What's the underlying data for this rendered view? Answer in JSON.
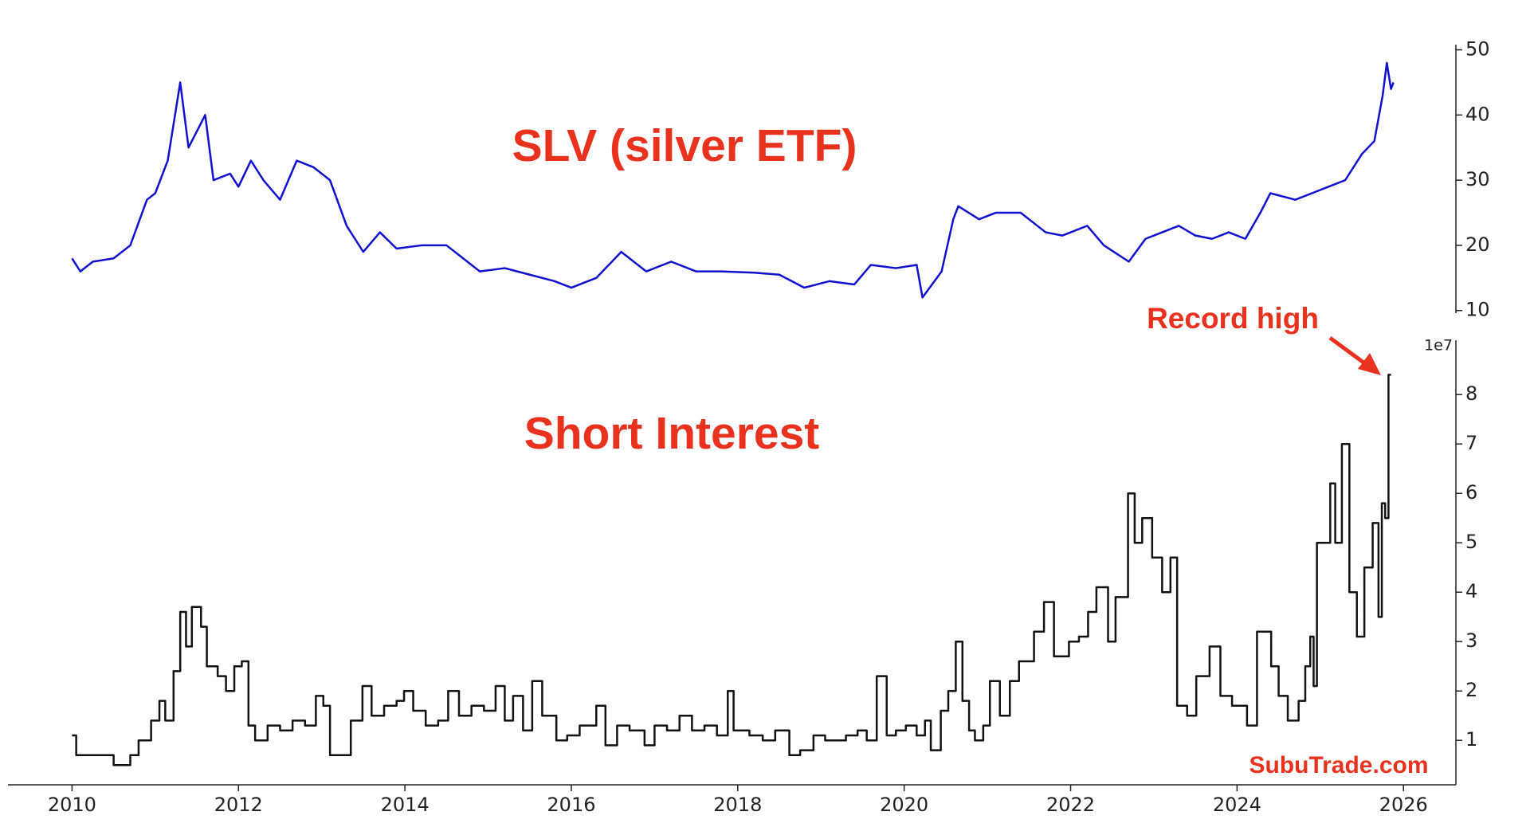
{
  "chart_data": [
    {
      "type": "line",
      "title": "SLV (silver ETF)",
      "color": "#1010d0",
      "xlim": [
        2009.23,
        2026.63
      ],
      "ylim": [
        9.6,
        50.8
      ],
      "yticks": [
        10,
        20,
        30,
        40,
        50
      ],
      "series": [
        {
          "color": "#1010d0",
          "x": [
            2010.0,
            2010.1,
            2010.25,
            2010.5,
            2010.7,
            2010.9,
            2011.0,
            2011.15,
            2011.3,
            2011.4,
            2011.6,
            2011.7,
            2011.9,
            2012.0,
            2012.15,
            2012.3,
            2012.5,
            2012.7,
            2012.9,
            2013.1,
            2013.3,
            2013.5,
            2013.7,
            2013.9,
            2014.2,
            2014.5,
            2014.7,
            2014.9,
            2015.2,
            2015.5,
            2015.8,
            2016.0,
            2016.3,
            2016.6,
            2016.9,
            2017.2,
            2017.5,
            2017.8,
            2018.2,
            2018.5,
            2018.8,
            2019.1,
            2019.4,
            2019.6,
            2019.9,
            2020.15,
            2020.22,
            2020.45,
            2020.59,
            2020.65,
            2020.9,
            2021.1,
            2021.4,
            2021.7,
            2021.9,
            2022.2,
            2022.4,
            2022.7,
            2022.9,
            2023.1,
            2023.3,
            2023.5,
            2023.7,
            2023.9,
            2024.1,
            2024.28,
            2024.4,
            2024.7,
            2024.9,
            2025.1,
            2025.3,
            2025.5,
            2025.65,
            2025.75,
            2025.8,
            2025.85,
            2025.88
          ],
          "values": [
            18,
            16,
            17.5,
            18,
            20,
            27,
            28,
            33,
            45,
            35,
            40,
            30,
            31,
            29,
            33,
            30,
            27,
            33,
            32,
            30,
            23,
            19,
            22,
            19.5,
            20,
            20,
            18,
            16,
            16.5,
            15.5,
            14.5,
            13.5,
            15,
            19,
            16,
            17.5,
            16,
            16,
            15.8,
            15.5,
            13.5,
            14.5,
            14,
            17,
            16.5,
            17,
            12,
            16,
            24,
            26,
            24,
            25,
            25,
            22,
            21.5,
            23,
            20,
            17.5,
            21,
            22,
            23,
            21.5,
            21,
            22,
            21,
            25,
            28,
            27,
            28,
            29,
            30,
            34,
            36,
            43,
            48,
            44,
            45
          ]
        }
      ]
    },
    {
      "type": "line",
      "step": "post",
      "title": "Short Interest",
      "color": "#111111",
      "annotations": [
        "Record high",
        "SubuTrade.com"
      ],
      "offset_label": "1e7",
      "xlim": [
        2009.23,
        2026.63
      ],
      "xticks": [
        2010,
        2012,
        2014,
        2016,
        2018,
        2020,
        2022,
        2024,
        2026
      ],
      "ylim": [
        0.1,
        9.1
      ],
      "yticks": [
        1,
        2,
        3,
        4,
        5,
        6,
        7,
        8
      ],
      "series": [
        {
          "color": "#111111",
          "x": [
            2010.0,
            2010.05,
            2010.3,
            2010.5,
            2010.7,
            2010.8,
            2010.95,
            2011.05,
            2011.12,
            2011.22,
            2011.3,
            2011.37,
            2011.44,
            2011.55,
            2011.62,
            2011.75,
            2011.85,
            2011.95,
            2012.04,
            2012.12,
            2012.2,
            2012.35,
            2012.5,
            2012.65,
            2012.8,
            2012.93,
            2013.02,
            2013.1,
            2013.25,
            2013.35,
            2013.49,
            2013.6,
            2013.75,
            2013.9,
            2013.99,
            2014.1,
            2014.25,
            2014.4,
            2014.52,
            2014.65,
            2014.8,
            2014.95,
            2015.09,
            2015.2,
            2015.3,
            2015.42,
            2015.53,
            2015.65,
            2015.82,
            2015.95,
            2016.1,
            2016.3,
            2016.41,
            2016.55,
            2016.7,
            2016.88,
            2017.0,
            2017.15,
            2017.3,
            2017.45,
            2017.6,
            2017.75,
            2017.88,
            2017.95,
            2018.14,
            2018.3,
            2018.45,
            2018.62,
            2018.75,
            2018.91,
            2019.05,
            2019.2,
            2019.3,
            2019.44,
            2019.55,
            2019.67,
            2019.79,
            2019.9,
            2020.02,
            2020.15,
            2020.25,
            2020.32,
            2020.44,
            2020.53,
            2020.62,
            2020.7,
            2020.78,
            2020.85,
            2020.95,
            2021.03,
            2021.15,
            2021.27,
            2021.38,
            2021.56,
            2021.68,
            2021.8,
            2021.98,
            2022.1,
            2022.21,
            2022.31,
            2022.45,
            2022.54,
            2022.69,
            2022.77,
            2022.86,
            2022.98,
            2023.1,
            2023.2,
            2023.28,
            2023.4,
            2023.51,
            2023.67,
            2023.8,
            2023.94,
            2024.12,
            2024.24,
            2024.41,
            2024.5,
            2024.61,
            2024.74,
            2024.82,
            2024.88,
            2024.92,
            2024.96,
            2025.12,
            2025.18,
            2025.26,
            2025.35,
            2025.44,
            2025.53,
            2025.63,
            2025.7,
            2025.74,
            2025.78,
            2025.82,
            2025.85
          ],
          "values": [
            1.1,
            0.7,
            0.7,
            0.5,
            0.7,
            1.0,
            1.4,
            1.8,
            1.4,
            2.4,
            3.6,
            2.9,
            3.7,
            3.3,
            2.5,
            2.3,
            2.0,
            2.5,
            2.6,
            1.3,
            1.0,
            1.3,
            1.2,
            1.4,
            1.3,
            1.9,
            1.7,
            0.7,
            0.7,
            1.4,
            2.1,
            1.5,
            1.7,
            1.8,
            2.0,
            1.6,
            1.3,
            1.4,
            2.0,
            1.5,
            1.7,
            1.6,
            2.1,
            1.4,
            1.9,
            1.2,
            2.2,
            1.5,
            1.0,
            1.1,
            1.3,
            1.7,
            0.9,
            1.3,
            1.2,
            0.9,
            1.3,
            1.2,
            1.5,
            1.2,
            1.3,
            1.1,
            2.0,
            1.2,
            1.1,
            1.0,
            1.2,
            0.7,
            0.8,
            1.1,
            1.0,
            1.0,
            1.1,
            1.2,
            1.0,
            2.3,
            1.1,
            1.2,
            1.3,
            1.1,
            1.4,
            0.8,
            1.6,
            2.0,
            3.0,
            1.8,
            1.2,
            1.0,
            1.3,
            2.2,
            1.5,
            2.2,
            2.6,
            3.2,
            3.8,
            2.7,
            3.0,
            3.1,
            3.6,
            4.1,
            3.0,
            3.9,
            6.0,
            5.0,
            5.5,
            4.7,
            4.0,
            4.7,
            1.7,
            1.5,
            2.3,
            2.9,
            1.9,
            1.7,
            1.3,
            3.2,
            2.5,
            1.9,
            1.4,
            1.8,
            2.5,
            3.1,
            2.1,
            5.0,
            6.2,
            5.0,
            7.0,
            4.0,
            3.1,
            4.5,
            5.4,
            3.5,
            5.8,
            5.5,
            8.4,
            8.4
          ]
        }
      ]
    }
  ]
}
